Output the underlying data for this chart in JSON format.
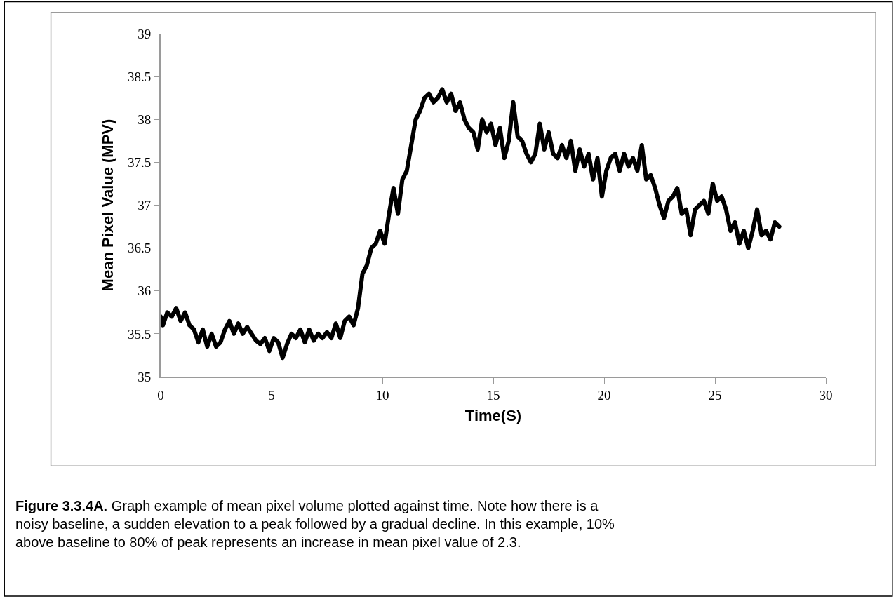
{
  "chart_data": {
    "type": "line",
    "xlabel": "Time(S)",
    "ylabel": "Mean Pixel Value (MPV)",
    "x": [
      0,
      0.1,
      0.3,
      0.5,
      0.7,
      0.9,
      1.1,
      1.3,
      1.5,
      1.7,
      1.9,
      2.1,
      2.3,
      2.5,
      2.7,
      2.9,
      3.1,
      3.3,
      3.5,
      3.7,
      3.9,
      4.1,
      4.3,
      4.5,
      4.7,
      4.9,
      5.1,
      5.3,
      5.5,
      5.7,
      5.9,
      6.1,
      6.3,
      6.5,
      6.7,
      6.9,
      7.1,
      7.3,
      7.5,
      7.7,
      7.9,
      8.1,
      8.3,
      8.5,
      8.7,
      8.9,
      9.1,
      9.3,
      9.5,
      9.7,
      9.9,
      10.1,
      10.3,
      10.5,
      10.7,
      10.9,
      11.1,
      11.3,
      11.5,
      11.7,
      11.9,
      12.1,
      12.3,
      12.5,
      12.7,
      12.9,
      13.1,
      13.3,
      13.5,
      13.7,
      13.9,
      14.1,
      14.3,
      14.5,
      14.7,
      14.9,
      15.1,
      15.3,
      15.5,
      15.7,
      15.9,
      16.1,
      16.3,
      16.5,
      16.7,
      16.9,
      17.1,
      17.3,
      17.5,
      17.7,
      17.9,
      18.1,
      18.3,
      18.5,
      18.7,
      18.9,
      19.1,
      19.3,
      19.5,
      19.7,
      19.9,
      20.1,
      20.3,
      20.5,
      20.7,
      20.9,
      21.1,
      21.3,
      21.5,
      21.7,
      21.9,
      22.1,
      22.3,
      22.5,
      22.7,
      22.9,
      23.1,
      23.3,
      23.5,
      23.7,
      23.9,
      24.1,
      24.3,
      24.5,
      24.7,
      24.9,
      25.1,
      25.3,
      25.5,
      25.7,
      25.9,
      26.1,
      26.3,
      26.5,
      26.7,
      26.9,
      27.1,
      27.3,
      27.5,
      27.7,
      27.9
    ],
    "series": [
      {
        "color": "#000000",
        "values": [
          35.7,
          35.6,
          35.75,
          35.7,
          35.8,
          35.65,
          35.75,
          35.6,
          35.55,
          35.4,
          35.55,
          35.35,
          35.5,
          35.35,
          35.4,
          35.55,
          35.65,
          35.5,
          35.62,
          35.5,
          35.58,
          35.5,
          35.42,
          35.38,
          35.45,
          35.3,
          35.45,
          35.4,
          35.22,
          35.38,
          35.5,
          35.45,
          35.55,
          35.4,
          35.55,
          35.42,
          35.5,
          35.45,
          35.52,
          35.45,
          35.62,
          35.45,
          35.65,
          35.7,
          35.6,
          35.8,
          36.2,
          36.3,
          36.5,
          36.55,
          36.7,
          36.55,
          36.9,
          37.2,
          36.9,
          37.3,
          37.4,
          37.7,
          38.0,
          38.1,
          38.25,
          38.3,
          38.2,
          38.25,
          38.35,
          38.2,
          38.3,
          38.1,
          38.2,
          38.0,
          37.9,
          37.85,
          37.65,
          38.0,
          37.85,
          37.95,
          37.7,
          37.9,
          37.55,
          37.75,
          38.2,
          37.8,
          37.75,
          37.6,
          37.5,
          37.6,
          37.95,
          37.65,
          37.85,
          37.6,
          37.55,
          37.7,
          37.55,
          37.75,
          37.4,
          37.65,
          37.45,
          37.6,
          37.3,
          37.55,
          37.1,
          37.4,
          37.55,
          37.6,
          37.4,
          37.6,
          37.45,
          37.55,
          37.4,
          37.7,
          37.3,
          37.35,
          37.2,
          37.0,
          36.85,
          37.05,
          37.1,
          37.2,
          36.9,
          36.95,
          36.65,
          36.95,
          37.0,
          37.05,
          36.9,
          37.25,
          37.05,
          37.1,
          36.95,
          36.7,
          36.8,
          36.55,
          36.7,
          36.5,
          36.7,
          36.95,
          36.65,
          36.7,
          36.6,
          36.8,
          36.75
        ]
      }
    ],
    "xlim": [
      0,
      30
    ],
    "xticks": [
      0,
      5,
      10,
      15,
      20,
      25,
      30
    ],
    "ylim": [
      35,
      39
    ],
    "yticks": [
      35,
      35.5,
      36,
      36.5,
      37,
      37.5,
      38,
      38.5,
      39
    ],
    "marker": "none",
    "line_style": "solid",
    "annotations": [
      "Figure 3.3.4A. Graph example of mean pixel volume plotted against time. Note how there is a noisy baseline, a sudden elevation to a peak followed by a gradual decline. In this example, 10% above baseline to 80% of peak represents an increase in mean pixel value of 2.3."
    ]
  }
}
